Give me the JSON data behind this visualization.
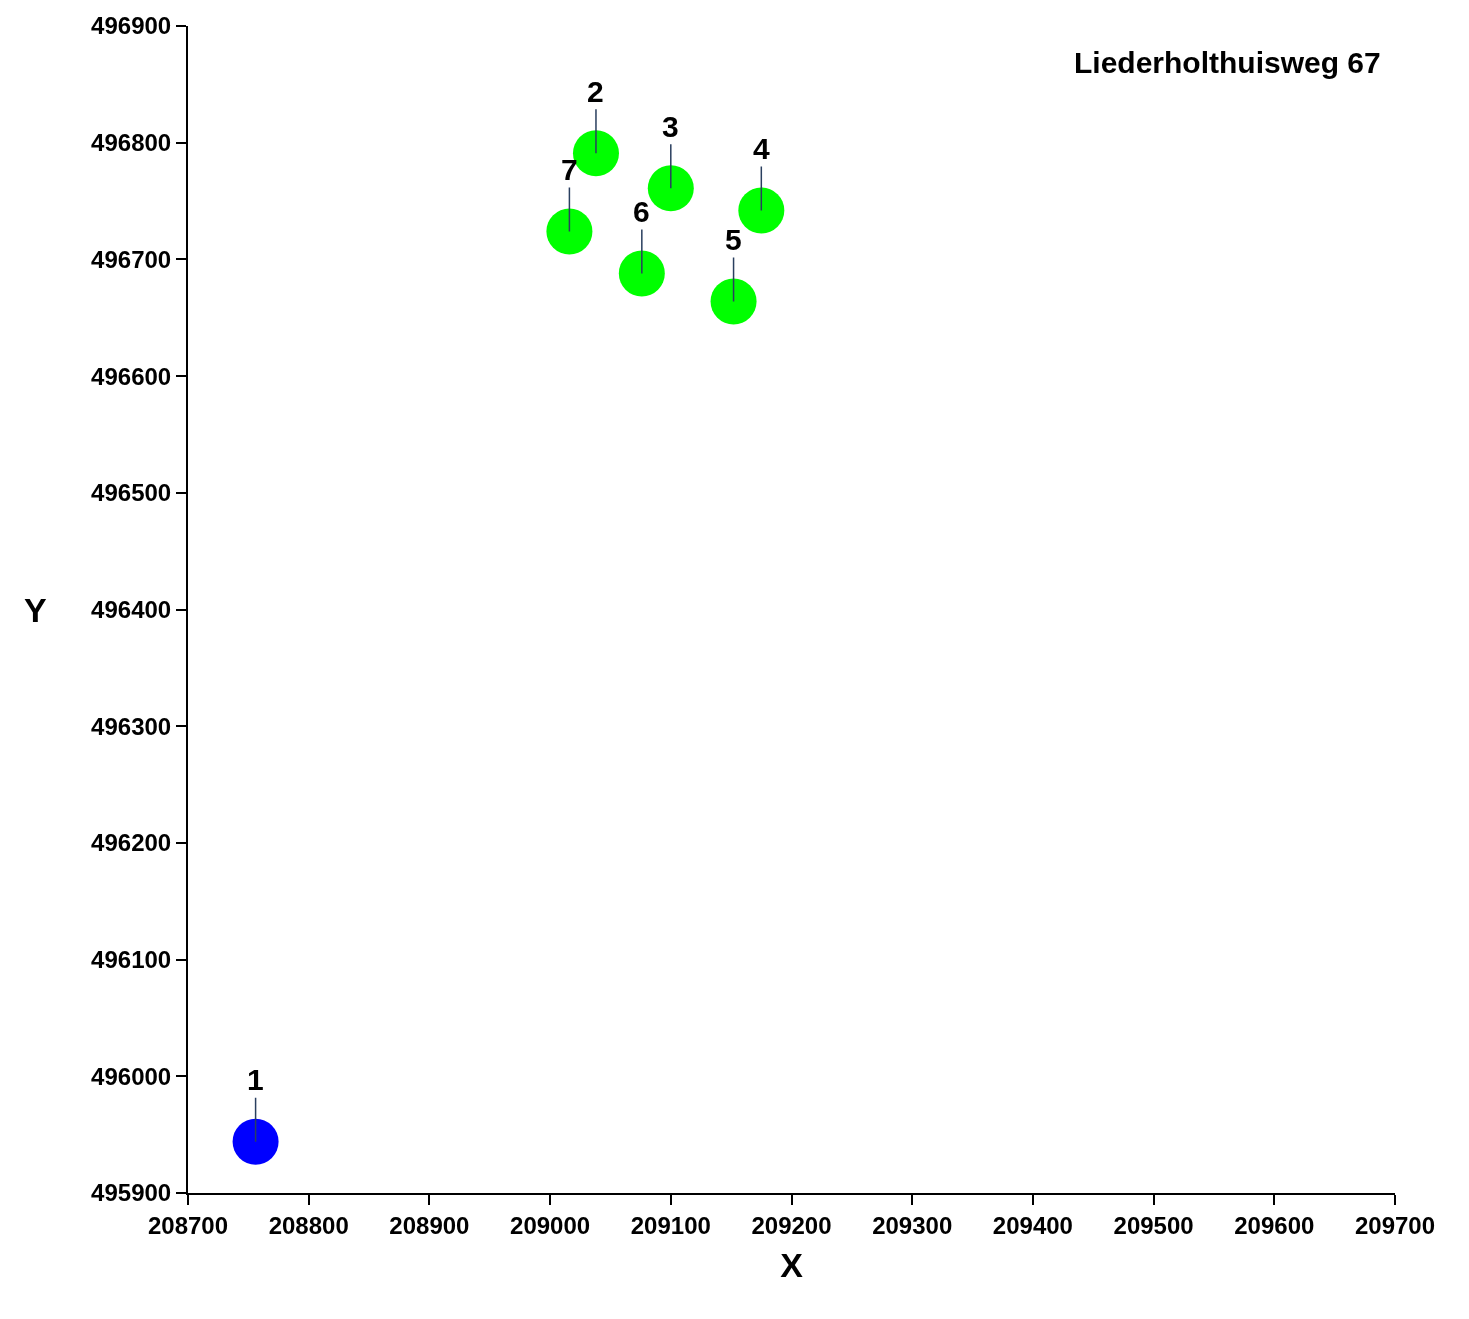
{
  "chart_data": {
    "type": "scatter",
    "xlabel": "X",
    "ylabel": "Y",
    "x": [
      208756,
      209038,
      209100,
      209175,
      209152,
      209076,
      209016
    ],
    "values": [
      495944,
      496791,
      496761,
      496742,
      496664,
      496688,
      496724
    ],
    "colors": [
      "#0000ff",
      "#00ff00",
      "#00ff00",
      "#00ff00",
      "#00ff00",
      "#00ff00",
      "#00ff00"
    ],
    "marker": "circle",
    "xlim": [
      208700,
      209700
    ],
    "xticks": [
      208700,
      208800,
      208900,
      209000,
      209100,
      209200,
      209300,
      209400,
      209500,
      209600,
      209700
    ],
    "ylim": [
      495900,
      496900
    ],
    "yticks": [
      495900,
      496000,
      496100,
      496200,
      496300,
      496400,
      496500,
      496600,
      496700,
      496800,
      496900
    ],
    "legend": false,
    "annotations": [
      {
        "text": "1",
        "x": 208756,
        "y": 495944
      },
      {
        "text": "2",
        "x": 209038,
        "y": 496791
      },
      {
        "text": "3",
        "x": 209100,
        "y": 496761
      },
      {
        "text": "4",
        "x": 209175,
        "y": 496742
      },
      {
        "text": "5",
        "x": 209152,
        "y": 496664
      },
      {
        "text": "6",
        "x": 209076,
        "y": 496688
      },
      {
        "text": "7",
        "x": 209016,
        "y": 496724
      },
      "Liederholthuisweg 67"
    ]
  }
}
